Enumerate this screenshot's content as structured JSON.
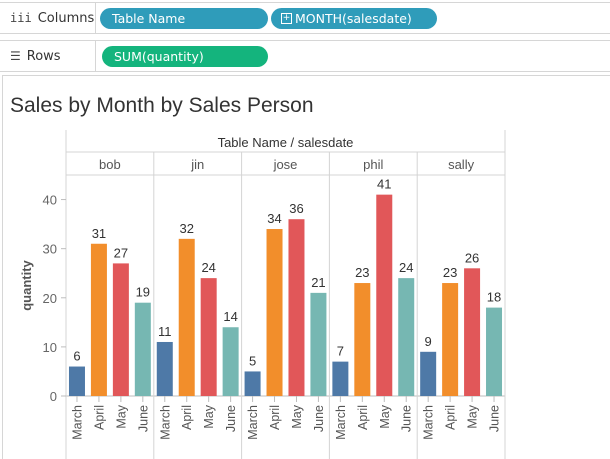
{
  "shelves": {
    "columns": {
      "label": "Columns",
      "pills": [
        "Table Name",
        "MONTH(salesdate)"
      ]
    },
    "rows": {
      "label": "Rows",
      "pills": [
        "SUM(quantity)"
      ]
    }
  },
  "sheet_title": "Sales by Month by Sales Person",
  "colors": {
    "March": "#4e79a7",
    "April": "#f28e2b",
    "May": "#e15759",
    "June": "#76b7b2",
    "pill_blue": "#2f9cba",
    "pill_green": "#14b47d"
  },
  "chart_data": {
    "type": "bar",
    "header_title": "Table Name / salesdate",
    "ylabel": "quantity",
    "ylim": [
      0,
      45
    ],
    "yticks": [
      0,
      10,
      20,
      30,
      40
    ],
    "months": [
      "March",
      "April",
      "May",
      "June"
    ],
    "panes": [
      {
        "name": "bob",
        "values": [
          6,
          31,
          27,
          19
        ]
      },
      {
        "name": "jin",
        "values": [
          11,
          32,
          24,
          14
        ]
      },
      {
        "name": "jose",
        "values": [
          5,
          34,
          36,
          21
        ]
      },
      {
        "name": "phil",
        "values": [
          7,
          23,
          41,
          24
        ]
      },
      {
        "name": "sally",
        "values": [
          9,
          23,
          26,
          18
        ]
      }
    ]
  }
}
